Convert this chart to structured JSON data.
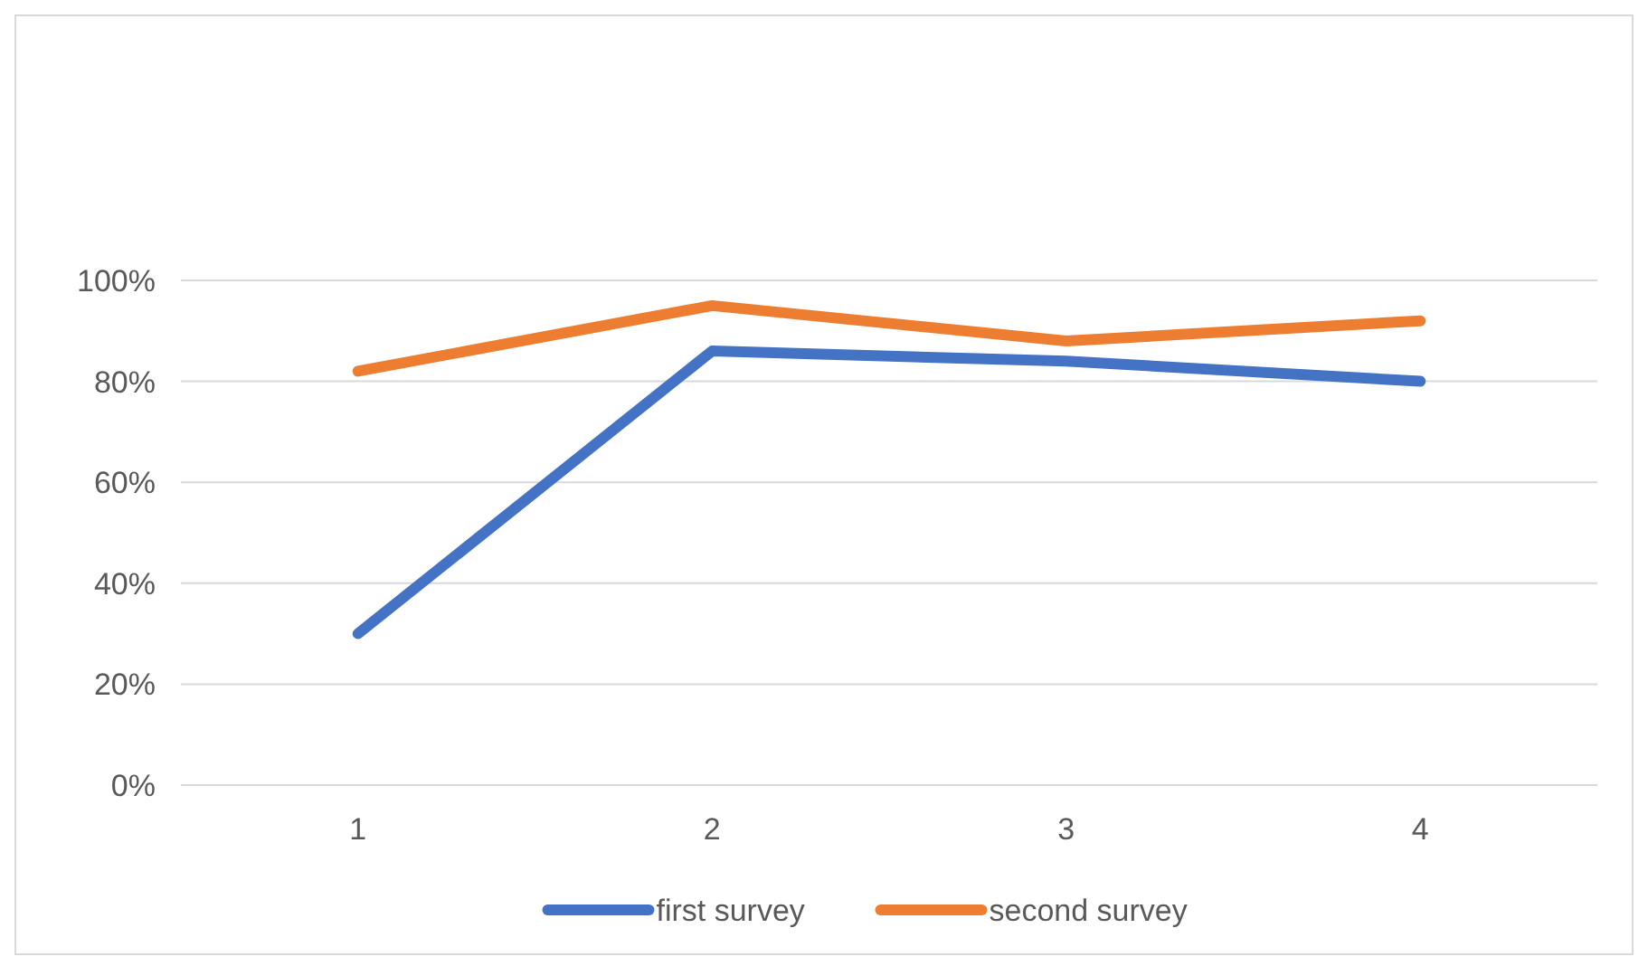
{
  "chart_data": {
    "type": "line",
    "categories": [
      "1",
      "2",
      "3",
      "4"
    ],
    "series": [
      {
        "name": "first survey",
        "color": "#4472c4",
        "values": [
          30,
          86,
          84,
          80
        ]
      },
      {
        "name": "second survey",
        "color": "#ed7d31",
        "values": [
          82,
          95,
          88,
          92
        ]
      }
    ],
    "ylim": [
      0,
      100
    ],
    "yticks": [
      {
        "value": 0,
        "label": "0%"
      },
      {
        "value": 20,
        "label": "20%"
      },
      {
        "value": 40,
        "label": "40%"
      },
      {
        "value": 60,
        "label": "60%"
      },
      {
        "value": 80,
        "label": "80%"
      },
      {
        "value": 100,
        "label": "100%"
      }
    ],
    "grid": "y",
    "legend": "bottom",
    "marker": "none",
    "line_style": "solid"
  }
}
